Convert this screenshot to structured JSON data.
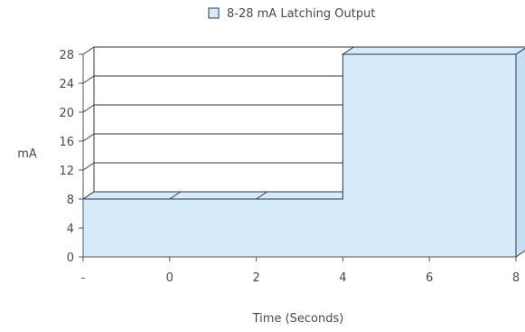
{
  "chart_data": {
    "type": "area",
    "title": "",
    "xlabel": "Time (Seconds)",
    "ylabel": "mA",
    "x_tick_labels": [
      "-",
      "0",
      "2",
      "4",
      "6",
      "8"
    ],
    "x_tick_values": [
      -2,
      0,
      2,
      4,
      6,
      8
    ],
    "xlim": [
      -2,
      8
    ],
    "y_ticks": [
      0,
      4,
      8,
      12,
      16,
      20,
      24,
      28
    ],
    "ylim": [
      0,
      28
    ],
    "grid": "horizontal",
    "projection": "3d",
    "legend_position": "top-center",
    "series": [
      {
        "name": "8-28 mA Latching Output",
        "color": "#d6ebf9",
        "edge_color": "#2b3a4a",
        "points": [
          {
            "x": -2,
            "y": 8
          },
          {
            "x": 4,
            "y": 8
          },
          {
            "x": 4,
            "y": 28
          },
          {
            "x": 8,
            "y": 28
          }
        ]
      }
    ]
  }
}
